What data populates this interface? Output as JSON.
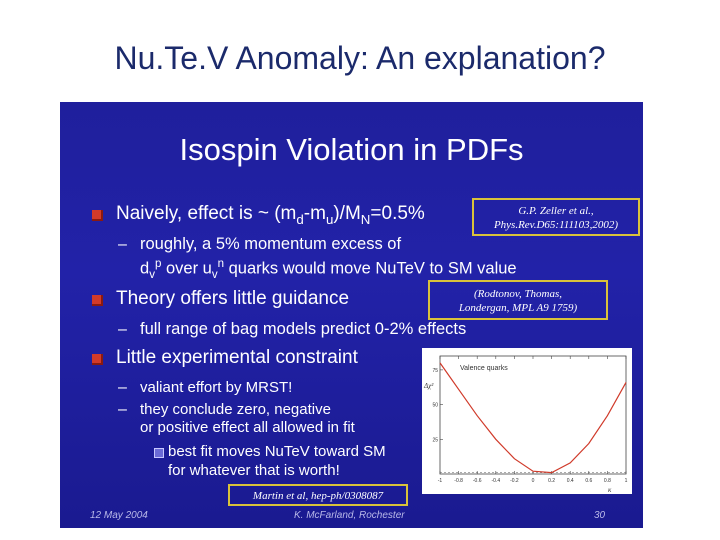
{
  "page_title": "Nu.Te.V Anomaly: An explanation?",
  "slide": {
    "title": "Isospin Violation in PDFs",
    "bullets": {
      "b1": "Naively, effect is ~ (m",
      "b1_sub1": "d",
      "b1_mid": "-m",
      "b1_sub2": "u",
      "b1_mid2": ")/M",
      "b1_sub3": "N",
      "b1_end": "=0.5%",
      "b1_s1": "roughly, a 5% momentum excess of",
      "b1_s2a": "d",
      "b1_s2a_sub": "v",
      "b1_s2a_sup": "p",
      "b1_s2b": " over u",
      "b1_s2b_sub": "v",
      "b1_s2b_sup": "n",
      "b1_s2c": " quarks would move NuTeV to SM value",
      "b2": "Theory offers little guidance",
      "b2_s1": "full range of bag models predict 0-2% effects",
      "b3": "Little experimental constraint",
      "b3_s1": "valiant effort by MRST!",
      "b3_s2a": "they conclude zero, negative",
      "b3_s2b": "or positive effect all allowed in fit",
      "b3_s3a": "best fit moves NuTeV toward SM",
      "b3_s3b": "for whatever that is worth!"
    },
    "refs": {
      "r1a": "G.P. Zeller et al.,",
      "r1b": "Phys.Rev.D65:111103,2002)",
      "r2a": "(Rodtonov, Thomas,",
      "r2b": "Londergan, MPL A9 1759)",
      "r3": "Martin et al, hep-ph/0308087"
    },
    "footer": {
      "date": "12 May 2004",
      "author": "K. McFarland, Rochester",
      "page": "30"
    }
  },
  "chart_data": {
    "type": "line",
    "title": "Valence quarks",
    "ylabel": "Δχ²",
    "xlabel": "κ",
    "x_ticks": [
      "-1",
      "-0.8",
      "-0.6",
      "-0.4",
      "-0.2",
      "0",
      "0.2",
      "0.4",
      "0.6",
      "0.8",
      "1"
    ],
    "y_ticks": [
      "75",
      "50",
      "25"
    ],
    "xlim": [
      -1,
      1
    ],
    "ylim": [
      0,
      85
    ],
    "series": [
      {
        "values_x": [
          -1.0,
          -0.8,
          -0.6,
          -0.4,
          -0.2,
          0.0,
          0.2,
          0.4,
          0.6,
          0.8,
          1.0
        ],
        "values_y": [
          80,
          61,
          42,
          25,
          11,
          2,
          1,
          8,
          22,
          42,
          66
        ]
      }
    ],
    "line_color": "#d03a2a"
  }
}
